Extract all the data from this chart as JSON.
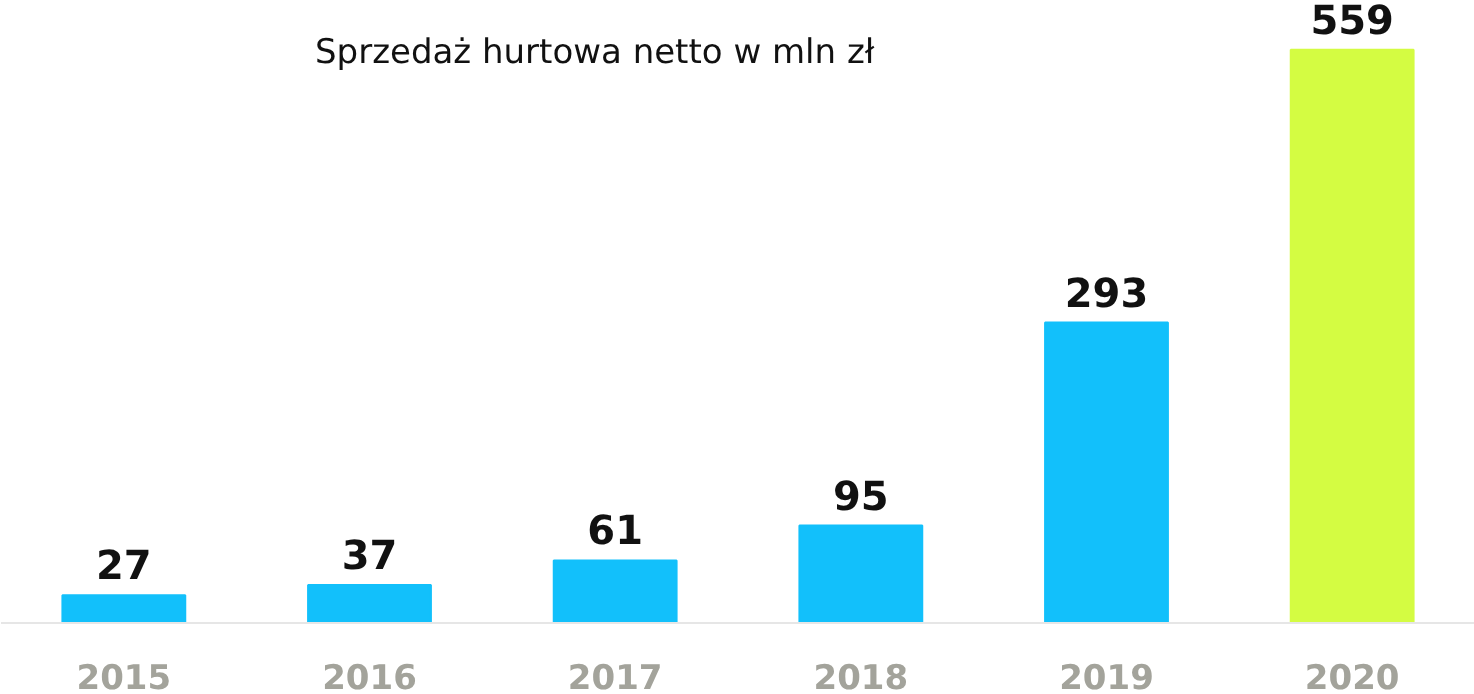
{
  "chart_data": {
    "type": "bar",
    "title": "Sprzedaż hurtowa netto w mln zł",
    "categories": [
      "2015",
      "2016",
      "2017",
      "2018",
      "2019",
      "2020"
    ],
    "values": [
      27,
      37,
      61,
      95,
      293,
      559
    ],
    "colors": [
      "#12c0fb",
      "#12c0fb",
      "#12c0fb",
      "#12c0fb",
      "#12c0fb",
      "#d4fc42"
    ],
    "data_labels": true
  }
}
